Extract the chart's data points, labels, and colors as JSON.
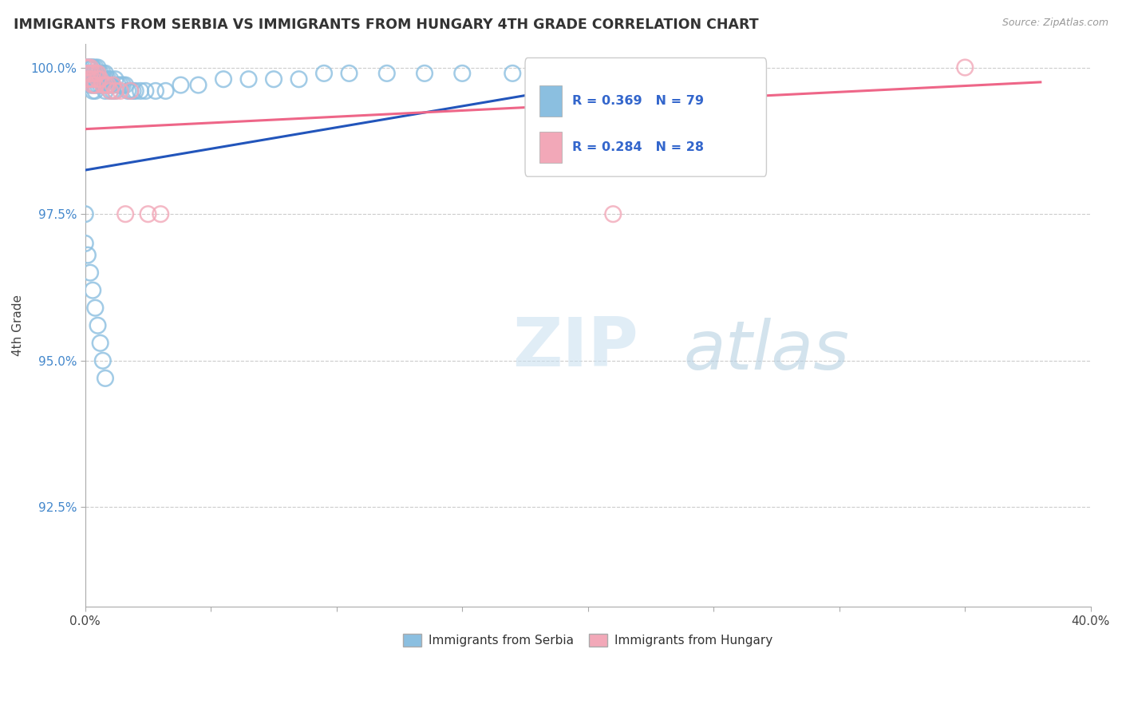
{
  "title": "IMMIGRANTS FROM SERBIA VS IMMIGRANTS FROM HUNGARY 4TH GRADE CORRELATION CHART",
  "source": "Source: ZipAtlas.com",
  "ylabel": "4th Grade",
  "xlim": [
    0.0,
    0.4
  ],
  "ylim": [
    0.908,
    1.004
  ],
  "xticks": [
    0.0,
    0.05,
    0.1,
    0.15,
    0.2,
    0.25,
    0.3,
    0.35,
    0.4
  ],
  "yticks": [
    0.925,
    0.95,
    0.975,
    1.0
  ],
  "ytick_labels": [
    "92.5%",
    "95.0%",
    "97.5%",
    "100.0%"
  ],
  "r_serbia": 0.369,
  "n_serbia": 79,
  "r_hungary": 0.284,
  "n_hungary": 28,
  "color_serbia": "#8BBFE0",
  "color_hungary": "#F2A8B8",
  "trendline_serbia": "#2255BB",
  "trendline_hungary": "#EE6688",
  "serbia_x": [
    0.001,
    0.001,
    0.001,
    0.001,
    0.002,
    0.002,
    0.002,
    0.002,
    0.002,
    0.003,
    0.003,
    0.003,
    0.003,
    0.003,
    0.003,
    0.004,
    0.004,
    0.004,
    0.004,
    0.004,
    0.005,
    0.005,
    0.005,
    0.005,
    0.006,
    0.006,
    0.006,
    0.007,
    0.007,
    0.007,
    0.008,
    0.008,
    0.008,
    0.009,
    0.009,
    0.01,
    0.01,
    0.01,
    0.011,
    0.011,
    0.012,
    0.012,
    0.013,
    0.014,
    0.015,
    0.016,
    0.017,
    0.018,
    0.019,
    0.02,
    0.022,
    0.024,
    0.028,
    0.032,
    0.038,
    0.045,
    0.055,
    0.065,
    0.075,
    0.085,
    0.095,
    0.105,
    0.12,
    0.135,
    0.15,
    0.17,
    0.19,
    0.21,
    0.23,
    0.0,
    0.0,
    0.001,
    0.002,
    0.003,
    0.004,
    0.005,
    0.006,
    0.007,
    0.008
  ],
  "serbia_y": [
    1.0,
    1.0,
    0.999,
    0.998,
    1.0,
    1.0,
    0.999,
    0.998,
    0.997,
    1.0,
    1.0,
    0.999,
    0.998,
    0.997,
    0.996,
    1.0,
    0.999,
    0.998,
    0.997,
    0.996,
    1.0,
    0.999,
    0.998,
    0.997,
    0.999,
    0.998,
    0.997,
    0.999,
    0.998,
    0.997,
    0.999,
    0.998,
    0.996,
    0.998,
    0.997,
    0.998,
    0.997,
    0.996,
    0.997,
    0.996,
    0.998,
    0.996,
    0.997,
    0.997,
    0.997,
    0.997,
    0.996,
    0.996,
    0.996,
    0.996,
    0.996,
    0.996,
    0.996,
    0.996,
    0.997,
    0.997,
    0.998,
    0.998,
    0.998,
    0.998,
    0.999,
    0.999,
    0.999,
    0.999,
    0.999,
    0.999,
    0.999,
    0.999,
    0.999,
    0.975,
    0.97,
    0.968,
    0.965,
    0.962,
    0.959,
    0.956,
    0.953,
    0.95,
    0.947
  ],
  "hungary_x": [
    0.0,
    0.001,
    0.001,
    0.001,
    0.002,
    0.002,
    0.002,
    0.003,
    0.003,
    0.003,
    0.004,
    0.004,
    0.005,
    0.005,
    0.006,
    0.007,
    0.008,
    0.009,
    0.01,
    0.011,
    0.012,
    0.014,
    0.016,
    0.018,
    0.025,
    0.03,
    0.21,
    0.35
  ],
  "hungary_y": [
    1.0,
    1.0,
    0.999,
    0.998,
    1.0,
    0.999,
    0.998,
    0.999,
    0.998,
    0.997,
    0.999,
    0.997,
    0.999,
    0.998,
    0.998,
    0.997,
    0.997,
    0.997,
    0.996,
    0.997,
    0.996,
    0.996,
    0.975,
    0.996,
    0.975,
    0.975,
    0.975,
    1.0
  ]
}
